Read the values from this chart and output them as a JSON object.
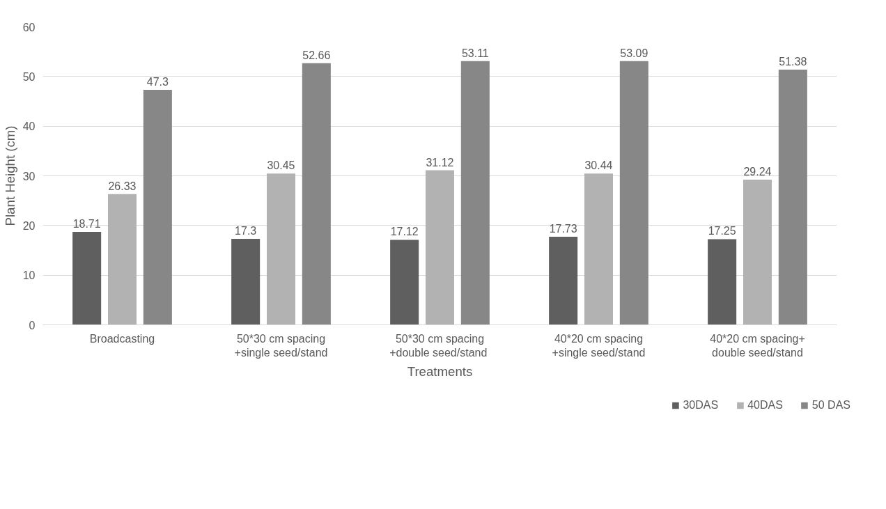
{
  "chart_data": {
    "type": "bar",
    "xlabel": "Treatments",
    "ylabel": "Plant Height (cm)",
    "categories": [
      "Broadcasting",
      "50*30 cm spacing\n+single seed/stand",
      "50*30 cm spacing\n+double  seed/stand",
      "40*20 cm spacing\n+single seed/stand",
      "40*20 cm spacing+\ndouble seed/stand"
    ],
    "series": [
      {
        "name": "30DAS",
        "color": "#5f5f5f",
        "values": [
          18.71,
          17.3,
          17.12,
          17.73,
          17.25
        ]
      },
      {
        "name": "40DAS",
        "color": "#b2b2b2",
        "values": [
          26.33,
          30.45,
          31.12,
          30.44,
          29.24
        ]
      },
      {
        "name": "50 DAS",
        "color": "#878787",
        "values": [
          47.3,
          52.66,
          53.11,
          53.09,
          51.38
        ]
      }
    ],
    "ylim": [
      0,
      60
    ],
    "yticks": [
      0,
      10,
      20,
      30,
      40,
      50,
      60
    ],
    "grid": "y",
    "data_labels": true,
    "legend": "bottom right"
  }
}
